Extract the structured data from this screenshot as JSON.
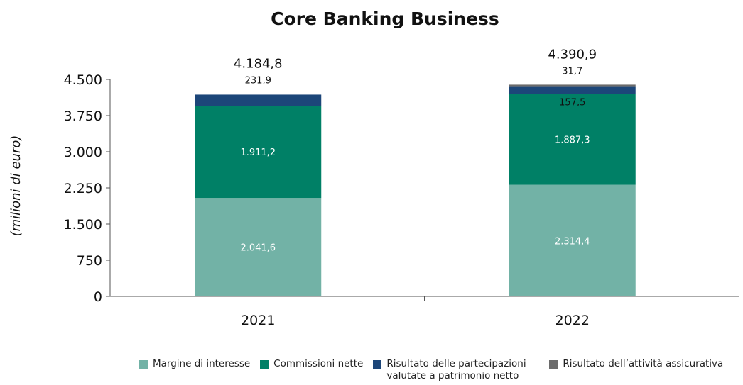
{
  "chart_data": {
    "type": "bar",
    "stacked": true,
    "title": "Core Banking Business",
    "ylabel": "(milioni di euro)",
    "xlabel": "",
    "categories": [
      "2021",
      "2022"
    ],
    "ylim": [
      0,
      4500
    ],
    "yticks": [
      0,
      750,
      1500,
      2250,
      3000,
      3750,
      4500
    ],
    "ytick_labels": [
      "0",
      "750",
      "1.500",
      "2.250",
      "3.000",
      "3.750",
      "4.500"
    ],
    "series": [
      {
        "name": "Margine di interesse",
        "color": "#72b2a6",
        "values": [
          2041.6,
          2314.4
        ],
        "labels": [
          "2.041,6",
          "2.314,4"
        ],
        "label_color": "#ffffff"
      },
      {
        "name": "Commissioni nette",
        "color": "#008066",
        "values": [
          1911.2,
          1887.3
        ],
        "labels": [
          "1.911,2",
          "1.887,3"
        ],
        "label_color": "#ffffff"
      },
      {
        "name": "Risultato delle partecipazioni valutate a patrimonio netto",
        "color": "#1c4679",
        "values": [
          231.9,
          157.5
        ],
        "labels": [
          "231,9",
          "157,5"
        ],
        "label_color": "#111111"
      },
      {
        "name": "Risultato dell’attività assicurativa",
        "color": "#6b6b6b",
        "values": [
          0,
          31.7
        ],
        "labels": [
          "",
          "31,7"
        ],
        "label_color": "#111111"
      }
    ],
    "totals": [
      4184.8,
      4390.9
    ],
    "total_labels": [
      "4.184,8",
      "4.390,9"
    ],
    "grid": false,
    "legend_position": "bottom"
  }
}
